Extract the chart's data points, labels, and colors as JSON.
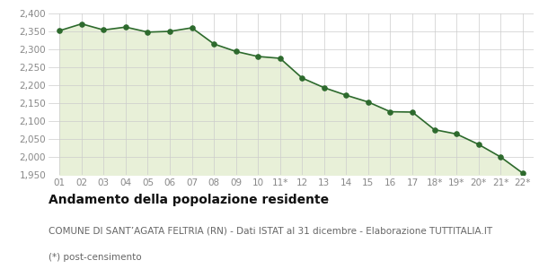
{
  "x_labels": [
    "01",
    "02",
    "03",
    "04",
    "05",
    "06",
    "07",
    "08",
    "09",
    "10",
    "11*",
    "12",
    "13",
    "14",
    "15",
    "16",
    "17",
    "18*",
    "19*",
    "20*",
    "21*",
    "22*"
  ],
  "y_values": [
    2352,
    2371,
    2354,
    2362,
    2348,
    2350,
    2360,
    2315,
    2294,
    2280,
    2275,
    2220,
    2193,
    2172,
    2153,
    2126,
    2125,
    2076,
    2064,
    2035,
    2000,
    1955
  ],
  "line_color": "#2d6a2d",
  "fill_color": "#e8f0d8",
  "marker_color": "#2d6a2d",
  "bg_color": "#ffffff",
  "grid_color": "#cccccc",
  "ylim": [
    1950,
    2400
  ],
  "yticks": [
    1950,
    2000,
    2050,
    2100,
    2150,
    2200,
    2250,
    2300,
    2350,
    2400
  ],
  "title": "Andamento della popolazione residente",
  "subtitle": "COMUNE DI SANT’AGATA FELTRIA (RN) - Dati ISTAT al 31 dicembre - Elaborazione TUTTITALIA.IT",
  "footnote": "(*) post-censimento",
  "title_fontsize": 10,
  "subtitle_fontsize": 7.5,
  "footnote_fontsize": 7.5,
  "tick_fontsize": 7.5,
  "text_color_title": "#111111",
  "text_color_sub": "#666666"
}
